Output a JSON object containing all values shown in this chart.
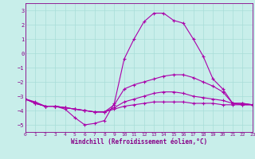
{
  "xlabel": "Windchill (Refroidissement éolien,°C)",
  "xlim": [
    0,
    23
  ],
  "ylim": [
    -5.5,
    3.5
  ],
  "yticks": [
    3,
    2,
    1,
    0,
    -1,
    -2,
    -3,
    -4,
    -5
  ],
  "xticks": [
    0,
    1,
    2,
    3,
    4,
    5,
    6,
    7,
    8,
    9,
    10,
    11,
    12,
    13,
    14,
    15,
    16,
    17,
    18,
    19,
    20,
    21,
    22,
    23
  ],
  "bg_color": "#c8eeea",
  "grid_color": "#a8ddd8",
  "line_color": "#aa00aa",
  "series": [
    {
      "x": [
        0,
        1,
        2,
        3,
        4,
        5,
        6,
        7,
        8,
        9,
        10,
        11,
        12,
        13,
        14,
        15,
        16,
        17,
        18,
        19,
        20,
        21,
        22,
        23
      ],
      "y": [
        -3.2,
        -3.4,
        -3.7,
        -3.7,
        -3.9,
        -4.5,
        -5.0,
        -4.9,
        -4.7,
        -3.5,
        -0.4,
        1.0,
        2.2,
        2.8,
        2.8,
        2.3,
        2.1,
        1.0,
        -0.2,
        -1.8,
        -2.5,
        -3.5,
        -3.6,
        -3.6
      ]
    },
    {
      "x": [
        0,
        1,
        2,
        3,
        4,
        5,
        6,
        7,
        8,
        9,
        10,
        11,
        12,
        13,
        14,
        15,
        16,
        17,
        18,
        19,
        20,
        21,
        22,
        23
      ],
      "y": [
        -3.2,
        -3.5,
        -3.7,
        -3.7,
        -3.8,
        -3.9,
        -4.0,
        -4.1,
        -4.1,
        -3.6,
        -2.5,
        -2.2,
        -2.0,
        -1.8,
        -1.6,
        -1.5,
        -1.5,
        -1.7,
        -2.0,
        -2.3,
        -2.7,
        -3.5,
        -3.5,
        -3.6
      ]
    },
    {
      "x": [
        0,
        1,
        2,
        3,
        4,
        5,
        6,
        7,
        8,
        9,
        10,
        11,
        12,
        13,
        14,
        15,
        16,
        17,
        18,
        19,
        20,
        21,
        22,
        23
      ],
      "y": [
        -3.2,
        -3.5,
        -3.7,
        -3.7,
        -3.8,
        -3.9,
        -4.0,
        -4.1,
        -4.1,
        -3.8,
        -3.4,
        -3.2,
        -3.0,
        -2.8,
        -2.7,
        -2.7,
        -2.8,
        -3.0,
        -3.1,
        -3.2,
        -3.3,
        -3.5,
        -3.5,
        -3.6
      ]
    },
    {
      "x": [
        0,
        1,
        2,
        3,
        4,
        5,
        6,
        7,
        8,
        9,
        10,
        11,
        12,
        13,
        14,
        15,
        16,
        17,
        18,
        19,
        20,
        21,
        22,
        23
      ],
      "y": [
        -3.2,
        -3.5,
        -3.7,
        -3.7,
        -3.8,
        -3.9,
        -4.0,
        -4.1,
        -4.1,
        -3.9,
        -3.7,
        -3.6,
        -3.5,
        -3.4,
        -3.4,
        -3.4,
        -3.4,
        -3.5,
        -3.5,
        -3.5,
        -3.6,
        -3.6,
        -3.6,
        -3.6
      ]
    }
  ]
}
